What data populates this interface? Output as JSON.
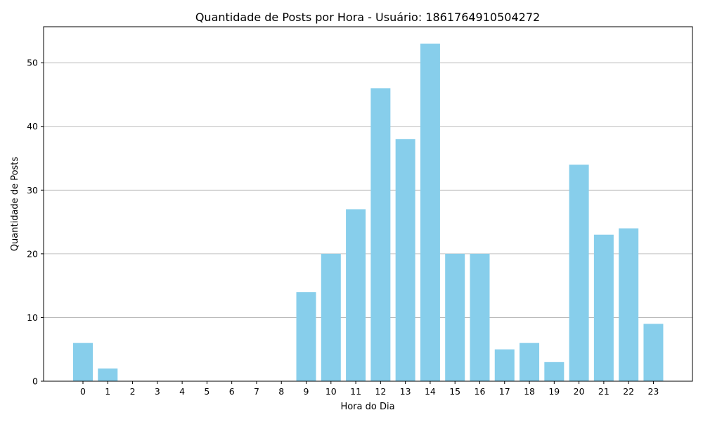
{
  "chart_data": {
    "type": "bar",
    "title": "Quantidade de Posts por Hora - Usuário: 1861764910504272",
    "xlabel": "Hora do Dia",
    "ylabel": "Quantidade de Posts",
    "categories": [
      "0",
      "1",
      "2",
      "3",
      "4",
      "5",
      "6",
      "7",
      "8",
      "9",
      "10",
      "11",
      "12",
      "13",
      "14",
      "15",
      "16",
      "17",
      "18",
      "19",
      "20",
      "21",
      "22",
      "23"
    ],
    "values": [
      6,
      2,
      0,
      0,
      0,
      0,
      0,
      0,
      0,
      14,
      20,
      27,
      46,
      38,
      53,
      20,
      20,
      5,
      6,
      3,
      34,
      23,
      24,
      9
    ],
    "ylim": [
      0,
      55.65
    ],
    "yticks": [
      0,
      10,
      20,
      30,
      40,
      50
    ],
    "grid": "y",
    "bar_color": "#87ceeb"
  }
}
